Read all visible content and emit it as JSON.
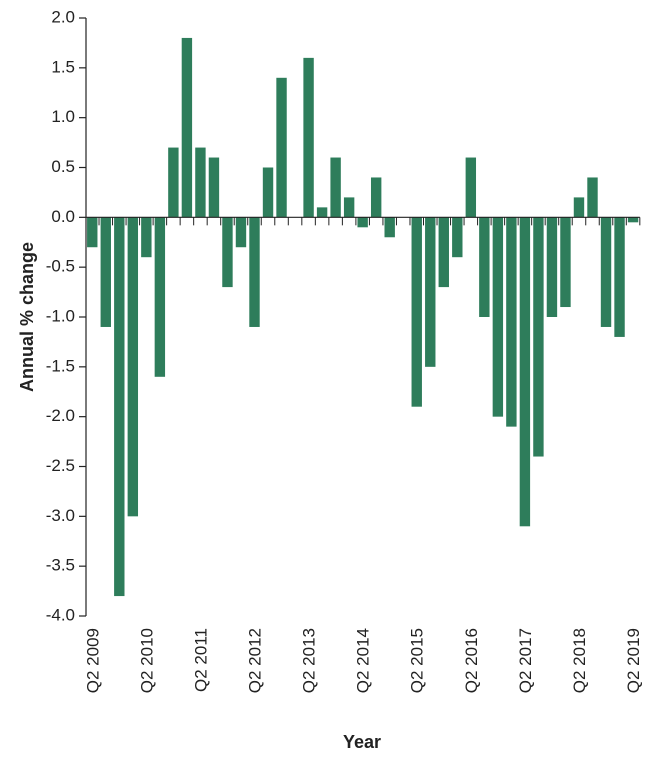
{
  "chart_data": {
    "type": "bar",
    "y_label": "Annual % change",
    "x_label": "Year",
    "color": "#2e7d5b",
    "categories": [
      "Q2 2009",
      null,
      null,
      null,
      "Q2 2010",
      null,
      null,
      null,
      "Q2 2011",
      null,
      null,
      null,
      "Q2 2012",
      null,
      null,
      null,
      "Q2 2013",
      null,
      null,
      null,
      "Q2 2014",
      null,
      null,
      null,
      "Q2 2015",
      null,
      null,
      null,
      "Q2 2016",
      null,
      null,
      null,
      "Q2 2017",
      null,
      null,
      null,
      "Q2 2018",
      null,
      null,
      null,
      "Q2 2019"
    ],
    "values": [
      -0.3,
      -1.1,
      -3.8,
      -3.0,
      -0.4,
      -1.6,
      0.7,
      1.8,
      0.7,
      0.6,
      -0.7,
      -0.3,
      -1.1,
      0.5,
      1.4,
      0,
      1.6,
      0.1,
      0.6,
      0.2,
      -0.1,
      0.4,
      -0.2,
      0,
      -1.9,
      -1.5,
      -0.7,
      -0.4,
      0.6,
      -1.0,
      -2.0,
      -2.1,
      -3.1,
      -2.4,
      -1.0,
      -0.9,
      0.2,
      0.4,
      -1.1,
      -1.2,
      -0.05
    ],
    "ylim": [
      -4.0,
      2.0
    ],
    "yticks": [
      {
        "value": 2,
        "label": "2.0"
      },
      1.5,
      {
        "value": 1,
        "label": "1.0"
      },
      0.5,
      {
        "value": 0,
        "label": "0.0"
      },
      -0.5,
      {
        "value": -1,
        "label": "-1.0"
      },
      -1.5,
      {
        "value": -2,
        "label": "-2.0"
      },
      -2.5,
      {
        "value": -3,
        "label": "-3.0"
      },
      -3.5,
      {
        "value": -4,
        "label": "-4.0"
      }
    ]
  }
}
